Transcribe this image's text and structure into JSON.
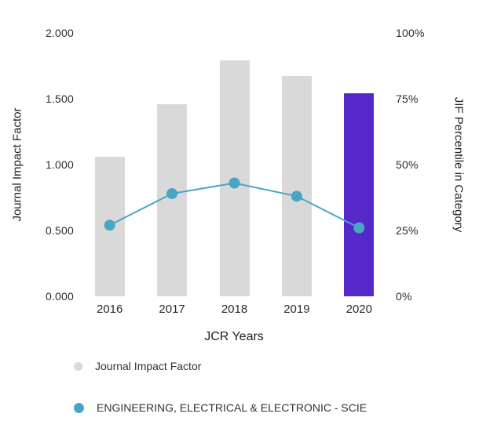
{
  "chart_data": {
    "type": "bar+line",
    "categories": [
      "2016",
      "2017",
      "2018",
      "2019",
      "2020"
    ],
    "series": [
      {
        "name": "Journal Impact Factor",
        "type": "bar",
        "axis": "left",
        "values": [
          1.06,
          1.46,
          1.79,
          1.67,
          1.54
        ],
        "bar_colors": [
          "#d9d9d9",
          "#d9d9d9",
          "#d9d9d9",
          "#d9d9d9",
          "#5728c9"
        ],
        "legend_color": "#d9d9d9"
      },
      {
        "name": "ENGINEERING, ELECTRICAL & ELECTRONIC - SCIE",
        "type": "line",
        "axis": "right",
        "values": [
          27,
          39,
          43,
          38,
          26
        ],
        "color": "#4aa5c4",
        "legend_color": "#4aa5c4"
      }
    ],
    "left_axis": {
      "label": "Journal Impact Factor",
      "min": 0,
      "max": 2,
      "ticks": [
        {
          "value": 0,
          "label": "0.000"
        },
        {
          "value": 0.5,
          "label": "0.500"
        },
        {
          "value": 1,
          "label": "1.000"
        },
        {
          "value": 1.5,
          "label": "1.500"
        },
        {
          "value": 2,
          "label": "2.000"
        }
      ]
    },
    "right_axis": {
      "label": "JIF Percentile in Category",
      "min": 0,
      "max": 100,
      "ticks": [
        {
          "value": 0,
          "label": "0%"
        },
        {
          "value": 25,
          "label": "25%"
        },
        {
          "value": 50,
          "label": "50%"
        },
        {
          "value": 75,
          "label": "75%"
        },
        {
          "value": 100,
          "label": "100%"
        }
      ]
    },
    "xlabel": "JCR Years",
    "grid": false,
    "legend_position": "bottom",
    "highlight_year": "2020",
    "colors": {
      "bar_default": "#d9d9d9",
      "bar_highlight": "#5728c9",
      "line": "#4aa5c4",
      "text": "#222222"
    }
  }
}
